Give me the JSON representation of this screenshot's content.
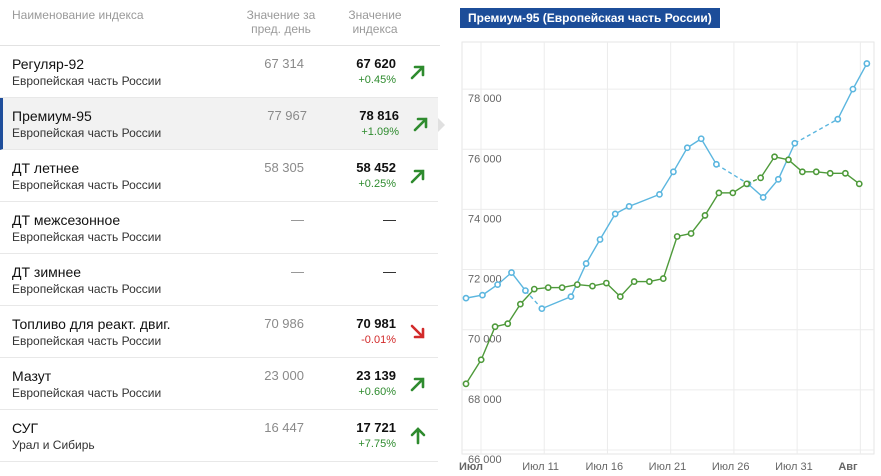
{
  "table": {
    "headers": {
      "name": "Наименование индекса",
      "prev": "Значение за пред. день",
      "current": "Значение индекса"
    },
    "rows": [
      {
        "name": "Регуляр-92",
        "region": "Европейская часть России",
        "prev": "67 314",
        "current": "67 620",
        "change": "+0.45%",
        "trend": "up-right"
      },
      {
        "name": "Премиум-95",
        "region": "Европейская часть России",
        "prev": "77 967",
        "current": "78 816",
        "change": "+1.09%",
        "trend": "up-right"
      },
      {
        "name": "ДТ летнее",
        "region": "Европейская часть России",
        "prev": "58 305",
        "current": "58 452",
        "change": "+0.25%",
        "trend": "up-right"
      },
      {
        "name": "ДТ межсезонное",
        "region": "Европейская часть России",
        "prev": "—",
        "current": "—",
        "change": "",
        "trend": "none"
      },
      {
        "name": "ДТ зимнее",
        "region": "Европейская часть России",
        "prev": "—",
        "current": "—",
        "change": "",
        "trend": "none"
      },
      {
        "name": "Топливо для реакт. двиг.",
        "region": "Европейская часть России",
        "prev": "70 986",
        "current": "70 981",
        "change": "-0.01%",
        "trend": "down-right"
      },
      {
        "name": "Мазут",
        "region": "Европейская часть России",
        "prev": "23 000",
        "current": "23 139",
        "change": "+0.60%",
        "trend": "up-right"
      },
      {
        "name": "СУГ",
        "region": "Урал и Сибирь",
        "prev": "16 447",
        "current": "17 721",
        "change": "+7.75%",
        "trend": "up"
      }
    ],
    "selected_index": 1
  },
  "colors": {
    "up": "#2e8b2e",
    "down": "#d22a2a",
    "accent": "#1c4d99",
    "series_blue": "#5bb6df",
    "series_green": "#4e9a3a"
  },
  "chart_data": {
    "type": "line",
    "title": "Премиум-95 (Европейская часть России)",
    "xlabel": "",
    "ylabel": "",
    "ylim": [
      66000,
      79500
    ],
    "yticks": [
      66000,
      68000,
      70000,
      72000,
      74000,
      76000,
      78000
    ],
    "ytick_labels": [
      "66 000",
      "68 000",
      "70 000",
      "72 000",
      "74 000",
      "76 000",
      "78 000"
    ],
    "xlim": [
      0,
      31
    ],
    "xticks": [
      0,
      5,
      10,
      15,
      20,
      25,
      30
    ],
    "xtick_labels": [
      "Июл",
      "Июл 11",
      "Июл 16",
      "Июл 21",
      "Июл 26",
      "Июл 31",
      "Авг"
    ],
    "series": [
      {
        "name": "blue",
        "color": "#5bb6df",
        "points": [
          [
            0,
            71.05
          ],
          [
            1.3,
            71.15
          ],
          [
            2.5,
            71.5
          ],
          [
            3.6,
            71.9
          ],
          [
            4.7,
            71.3
          ],
          [
            6,
            70.7
          ],
          [
            8.3,
            71.1
          ],
          [
            9.5,
            72.2
          ],
          [
            10.6,
            73.0
          ],
          [
            11.8,
            73.85
          ],
          [
            12.9,
            74.1
          ],
          [
            15.3,
            74.5
          ],
          [
            16.4,
            75.25
          ],
          [
            17.5,
            76.05
          ],
          [
            18.6,
            76.35
          ],
          [
            19.8,
            75.5
          ],
          [
            22.3,
            74.85
          ],
          [
            23.5,
            74.4
          ],
          [
            24.7,
            75.0
          ],
          [
            26.0,
            76.2
          ],
          [
            29.4,
            77.0
          ],
          [
            30.6,
            78.0
          ],
          [
            31.7,
            78.85
          ]
        ],
        "dashed_segments": [
          [
            4.7,
            6
          ],
          [
            19.8,
            22.3
          ],
          [
            26.0,
            29.4
          ]
        ]
      },
      {
        "name": "green",
        "color": "#4e9a3a",
        "points": [
          [
            0,
            68.2
          ],
          [
            1.2,
            69.0
          ],
          [
            2.3,
            70.1
          ],
          [
            3.3,
            70.2
          ],
          [
            4.3,
            70.85
          ],
          [
            5.4,
            71.35
          ],
          [
            6.5,
            71.4
          ],
          [
            7.6,
            71.4
          ],
          [
            8.8,
            71.5
          ],
          [
            10.0,
            71.45
          ],
          [
            11.1,
            71.55
          ],
          [
            12.2,
            71.1
          ],
          [
            13.3,
            71.6
          ],
          [
            14.5,
            71.6
          ],
          [
            15.6,
            71.7
          ],
          [
            16.7,
            73.1
          ],
          [
            17.8,
            73.2
          ],
          [
            18.9,
            73.8
          ],
          [
            20.0,
            74.55
          ],
          [
            21.1,
            74.55
          ],
          [
            22.2,
            74.85
          ],
          [
            23.3,
            75.05
          ],
          [
            24.4,
            75.75
          ],
          [
            25.5,
            75.65
          ],
          [
            26.6,
            75.25
          ],
          [
            27.7,
            75.25
          ],
          [
            28.8,
            75.2
          ],
          [
            30.0,
            75.2
          ],
          [
            31.1,
            74.85
          ]
        ],
        "dashed_segments": [
          [
            22.2,
            23.3
          ]
        ]
      }
    ]
  }
}
